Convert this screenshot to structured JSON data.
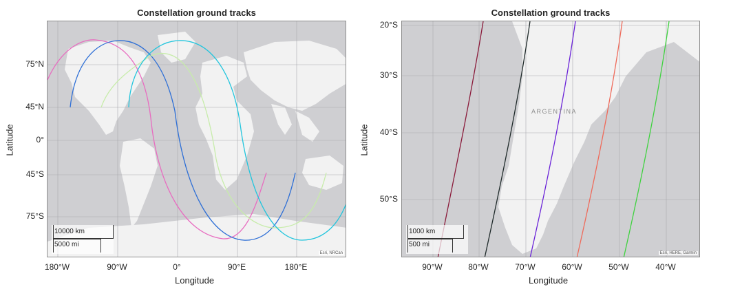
{
  "left_map": {
    "title": "Constellation ground tracks",
    "xlabel": "Longitude",
    "ylabel": "Latitude",
    "lat_ticks": [
      "75°N",
      "45°N",
      "0°",
      "45°S",
      "75°S"
    ],
    "lon_ticks": [
      "180°W",
      "90°W",
      "0°",
      "90°E",
      "180°E"
    ],
    "scalebar_km": "10000 km",
    "scalebar_mi": "5000 mi",
    "attribution": "Esri, NRCan",
    "track_colors": [
      "#e86cc0",
      "#2e6fd6",
      "#c7ecaa",
      "#22c5dd"
    ]
  },
  "right_map": {
    "title": "Constellation ground tracks",
    "xlabel": "Longitude",
    "ylabel": "Latitude",
    "lat_ticks": [
      "20°S",
      "30°S",
      "40°S",
      "50°S"
    ],
    "lon_ticks": [
      "90°W",
      "80°W",
      "70°W",
      "60°W",
      "50°W",
      "40°W"
    ],
    "country_label": "ARGENTINA",
    "scalebar_km": "1000 km",
    "scalebar_mi": "500 mi",
    "attribution": "Esri, HERE, Garmin",
    "track_colors": [
      "#8a1a3a",
      "#1f2a2a",
      "#6a22d8",
      "#ef6a5a",
      "#3fd23f"
    ]
  }
}
